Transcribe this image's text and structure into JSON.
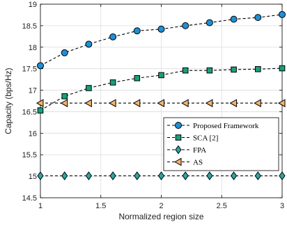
{
  "chart_data": {
    "type": "line",
    "title": "",
    "xlabel": "Normalized region size",
    "ylabel": "Capacity (bps/Hz)",
    "xlim": [
      1,
      3
    ],
    "ylim": [
      14.5,
      19
    ],
    "xticks": [
      1,
      1.5,
      2,
      2.5,
      3
    ],
    "xtick_labels": [
      "1",
      "1.5",
      "2",
      "2.5",
      "3"
    ],
    "yticks": [
      14.5,
      15,
      15.5,
      16,
      16.5,
      17,
      17.5,
      18,
      18.5,
      19
    ],
    "ytick_labels": [
      "14.5",
      "15",
      "15.5",
      "16",
      "16.5",
      "17",
      "17.5",
      "18",
      "18.5",
      "19"
    ],
    "grid": true,
    "legend_position": "center-right",
    "x": [
      1,
      1.2,
      1.4,
      1.6,
      1.8,
      2,
      2.2,
      2.4,
      2.6,
      2.8,
      3
    ],
    "series": [
      {
        "name": "Proposed Framework",
        "marker": "circle",
        "color": "#1f8fd6",
        "values": [
          17.57,
          17.87,
          18.07,
          18.24,
          18.38,
          18.42,
          18.5,
          18.57,
          18.65,
          18.69,
          18.76
        ]
      },
      {
        "name": "SCA [2]",
        "marker": "square",
        "color": "#18a07c",
        "values": [
          16.53,
          16.86,
          17.05,
          17.18,
          17.28,
          17.35,
          17.46,
          17.46,
          17.48,
          17.49,
          17.51
        ]
      },
      {
        "name": "FPA",
        "marker": "diamond",
        "color": "#2aa6a6",
        "values": [
          15.01,
          15.01,
          15.01,
          15.01,
          15.01,
          15.01,
          15.01,
          15.01,
          15.01,
          15.01,
          15.01
        ]
      },
      {
        "name": "AS",
        "marker": "triangle-left",
        "color": "#f5b36a",
        "values": [
          16.7,
          16.7,
          16.7,
          16.7,
          16.7,
          16.7,
          16.7,
          16.7,
          16.7,
          16.7,
          16.7
        ]
      }
    ]
  }
}
